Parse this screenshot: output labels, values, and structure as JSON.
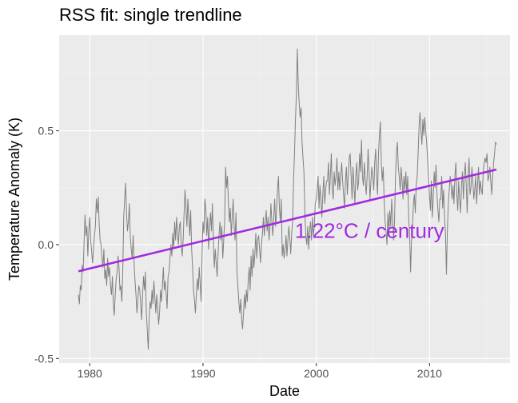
{
  "chart_data": {
    "type": "line",
    "title": "RSS fit: single trendline",
    "xlabel": "Date",
    "ylabel": "Temperature Anomaly (K)",
    "xlim": [
      1977.3,
      2017.1
    ],
    "ylim": [
      -0.52,
      0.92
    ],
    "x_ticks": [
      1980,
      1990,
      2000,
      2010
    ],
    "y_ticks": [
      -0.5,
      0.0,
      0.5
    ],
    "y_tick_labels": [
      "-0.5",
      "0.0",
      "0.5"
    ],
    "grid": true,
    "legend": "none",
    "annotation": {
      "text": "1.22°C / century",
      "x": 2004.7,
      "y": 0.03
    },
    "series": [
      {
        "kind": "monthly-line",
        "color": "#808080",
        "x_start": 1979.0,
        "x_step": 0.0833,
        "values": [
          -0.22,
          -0.26,
          -0.18,
          -0.2,
          -0.09,
          -0.12,
          0.01,
          0.13,
          0.04,
          0.08,
          -0.05,
          0.06,
          0.12,
          0.02,
          -0.03,
          -0.08,
          -0.02,
          0.04,
          0.08,
          0.2,
          0.14,
          0.21,
          0.09,
          0.02,
          0.0,
          -0.06,
          -0.1,
          -0.02,
          -0.15,
          -0.11,
          -0.18,
          -0.06,
          -0.14,
          -0.1,
          -0.18,
          -0.22,
          -0.14,
          -0.26,
          -0.31,
          -0.22,
          -0.15,
          -0.12,
          -0.05,
          -0.1,
          -0.2,
          -0.18,
          -0.25,
          -0.12,
          0.12,
          0.2,
          0.27,
          0.14,
          0.06,
          0.1,
          0.18,
          0.03,
          -0.02,
          -0.06,
          0.04,
          -0.08,
          -0.16,
          -0.22,
          -0.3,
          -0.24,
          -0.18,
          -0.2,
          -0.26,
          -0.33,
          -0.22,
          -0.14,
          -0.2,
          -0.12,
          -0.3,
          -0.38,
          -0.46,
          -0.32,
          -0.25,
          -0.28,
          -0.2,
          -0.26,
          -0.16,
          -0.23,
          -0.3,
          -0.22,
          -0.28,
          -0.35,
          -0.3,
          -0.2,
          -0.25,
          -0.18,
          -0.1,
          -0.2,
          -0.16,
          -0.22,
          -0.28,
          -0.14,
          -0.12,
          -0.06,
          0.0,
          -0.05,
          0.05,
          -0.02,
          0.1,
          0.02,
          0.12,
          0.05,
          0.0,
          0.08,
          0.1,
          0.0,
          -0.05,
          0.02,
          0.14,
          0.24,
          0.16,
          0.08,
          0.2,
          0.12,
          0.04,
          0.15,
          -0.02,
          -0.1,
          -0.2,
          -0.24,
          -0.3,
          -0.22,
          -0.15,
          -0.2,
          -0.1,
          -0.17,
          -0.25,
          -0.06,
          0.1,
          0.05,
          0.2,
          0.16,
          0.04,
          0.12,
          -0.02,
          0.08,
          0.14,
          0.06,
          0.18,
          0.02,
          -0.1,
          -0.02,
          -0.08,
          -0.14,
          -0.04,
          0.04,
          0.1,
          0.02,
          0.08,
          -0.06,
          0.02,
          0.11,
          0.34,
          0.25,
          0.3,
          0.18,
          0.1,
          0.16,
          0.04,
          0.12,
          0.2,
          0.08,
          0.02,
          0.14,
          -0.12,
          -0.18,
          -0.25,
          -0.3,
          -0.24,
          -0.33,
          -0.37,
          -0.3,
          -0.22,
          -0.28,
          -0.2,
          -0.25,
          -0.15,
          -0.1,
          -0.2,
          -0.05,
          -0.14,
          -0.02,
          -0.1,
          -0.04,
          0.05,
          -0.06,
          0.02,
          0.04,
          -0.02,
          -0.08,
          0.0,
          0.05,
          0.12,
          0.04,
          0.1,
          0.15,
          0.06,
          0.12,
          0.02,
          0.08,
          0.18,
          0.1,
          0.04,
          0.12,
          0.2,
          0.08,
          0.15,
          0.24,
          0.3,
          0.16,
          0.1,
          0.2,
          -0.05,
          0.0,
          -0.06,
          -0.02,
          0.04,
          -0.05,
          0.02,
          0.08,
          0.03,
          -0.04,
          0.05,
          0.1,
          0.28,
          0.4,
          0.55,
          0.66,
          0.86,
          0.7,
          0.62,
          0.56,
          0.6,
          0.45,
          0.38,
          0.32,
          0.14,
          0.04,
          0.0,
          0.08,
          -0.02,
          0.06,
          0.1,
          0.02,
          0.12,
          0.04,
          0.08,
          0.18,
          0.2,
          0.24,
          0.3,
          0.16,
          0.26,
          0.2,
          0.12,
          0.22,
          0.3,
          0.18,
          0.24,
          0.28,
          0.28,
          0.36,
          0.22,
          0.3,
          0.4,
          0.25,
          0.2,
          0.32,
          0.26,
          0.3,
          0.38,
          0.24,
          0.32,
          0.24,
          0.3,
          0.36,
          0.28,
          0.22,
          0.16,
          0.28,
          0.34,
          0.22,
          0.3,
          0.38,
          0.4,
          0.3,
          0.2,
          0.34,
          0.26,
          0.18,
          0.3,
          0.36,
          0.24,
          0.28,
          0.4,
          0.32,
          0.46,
          0.3,
          0.26,
          0.36,
          0.28,
          0.22,
          0.3,
          0.42,
          0.32,
          0.2,
          0.28,
          0.34,
          0.3,
          0.24,
          0.36,
          0.42,
          0.3,
          0.22,
          0.4,
          0.48,
          0.54,
          0.36,
          0.28,
          0.34,
          0.2,
          0.1,
          0.06,
          0.0,
          0.14,
          0.05,
          0.15,
          0.08,
          0.2,
          0.12,
          0.02,
          0.1,
          0.3,
          0.4,
          0.45,
          0.34,
          0.3,
          0.24,
          0.34,
          0.28,
          0.2,
          0.3,
          0.24,
          0.32,
          0.22,
          0.3,
          0.12,
          0.05,
          -0.12,
          0.02,
          0.08,
          0.18,
          0.22,
          0.14,
          0.26,
          0.3,
          0.4,
          0.52,
          0.58,
          0.5,
          0.44,
          0.55,
          0.48,
          0.56,
          0.5,
          0.45,
          0.38,
          0.3,
          0.22,
          0.15,
          0.28,
          0.12,
          0.2,
          0.32,
          0.25,
          0.35,
          0.22,
          0.15,
          0.1,
          0.2,
          0.2,
          0.3,
          0.16,
          0.24,
          0.12,
          0.05,
          -0.13,
          0.06,
          0.18,
          0.24,
          0.3,
          0.26,
          0.2,
          0.26,
          0.18,
          0.3,
          0.36,
          0.22,
          0.15,
          0.28,
          0.2,
          0.14,
          0.26,
          0.32,
          0.2,
          0.3,
          0.36,
          0.26,
          0.14,
          0.3,
          0.38,
          0.22,
          0.25,
          0.34,
          0.28,
          0.2,
          0.24,
          0.3,
          0.18,
          0.26,
          0.34,
          0.22,
          0.28,
          0.24,
          0.22,
          0.32,
          0.36,
          0.38,
          0.36,
          0.4,
          0.28,
          0.3,
          0.34,
          0.28,
          0.22,
          0.3,
          0.36,
          0.4,
          0.45,
          0.44
        ]
      },
      {
        "kind": "trendline",
        "color": "#a02ce0",
        "x": [
          1979.0,
          2015.9
        ],
        "values": [
          -0.117,
          0.33
        ]
      }
    ]
  }
}
